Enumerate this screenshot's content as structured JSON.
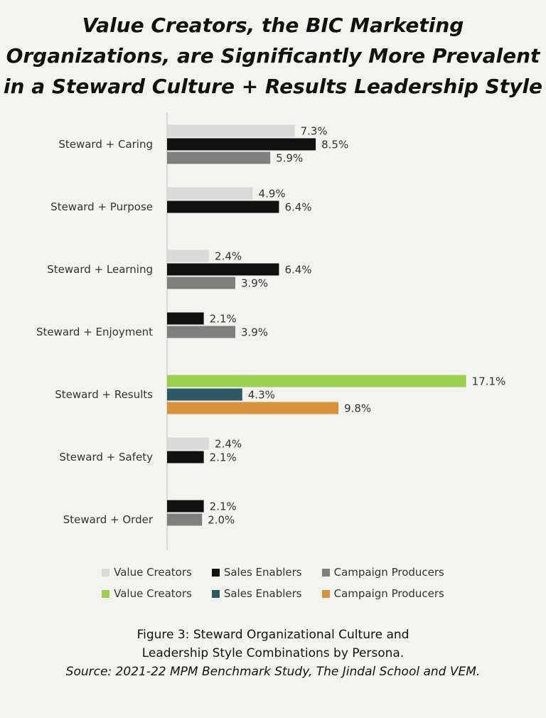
{
  "chart_data": {
    "type": "bar",
    "orientation": "horizontal",
    "title_lines": [
      "Value Creators, the BIC Marketing",
      "Organizations, are Significantly More Prevalent",
      "in a Steward Culture + Results Leadership Style"
    ],
    "categories": [
      "Steward + Caring",
      "Steward + Purpose",
      "Steward + Learning",
      "Steward + Enjoyment",
      "Steward + Results",
      "Steward + Safety",
      "Steward + Order"
    ],
    "series": [
      {
        "name": "Value Creators",
        "color": "#d9d9d9",
        "values": [
          7.3,
          4.9,
          2.4,
          null,
          null,
          2.4,
          null
        ]
      },
      {
        "name": "Sales Enablers",
        "color": "#111111",
        "values": [
          8.5,
          6.4,
          6.4,
          2.1,
          null,
          2.1,
          2.1
        ]
      },
      {
        "name": "Campaign Producers",
        "color": "#7f7f7f",
        "values": [
          5.9,
          null,
          3.9,
          3.9,
          null,
          null,
          2.0
        ]
      },
      {
        "name": "Value Creators",
        "color": "#9bcf4e",
        "values": [
          null,
          null,
          null,
          null,
          17.1,
          null,
          null
        ]
      },
      {
        "name": "Sales Enablers",
        "color": "#2d5966",
        "values": [
          null,
          null,
          null,
          null,
          4.3,
          null,
          null
        ]
      },
      {
        "name": "Campaign Producers",
        "color": "#d99239",
        "values": [
          null,
          null,
          null,
          null,
          9.8,
          null,
          null
        ]
      }
    ],
    "value_suffix": "%",
    "xlim": [
      0,
      17.1
    ],
    "grid": false,
    "legend_position": "bottom"
  },
  "caption": {
    "line1": "Figure 3: Steward Organizational Culture and",
    "line2": "Leadership Style Combinations by Persona.",
    "source": "Source: 2021-22 MPM Benchmark Study, The Jindal School and VEM."
  }
}
